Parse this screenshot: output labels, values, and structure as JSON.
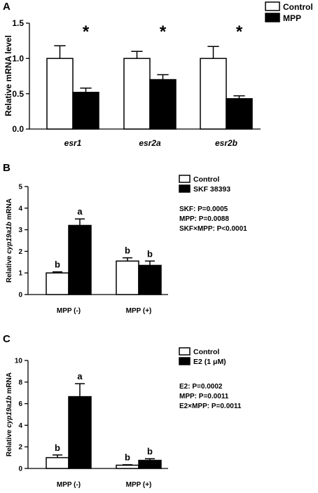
{
  "chart_data": [
    {
      "panel_label": "A",
      "type": "bar",
      "categories": [
        "esr1",
        "esr2a",
        "esr2b"
      ],
      "series": [
        {
          "name": "Control",
          "values": [
            1.0,
            1.0,
            1.0
          ],
          "errors": [
            0.18,
            0.1,
            0.17
          ]
        },
        {
          "name": "MPP",
          "values": [
            0.52,
            0.7,
            0.43
          ],
          "errors": [
            0.06,
            0.07,
            0.04
          ]
        }
      ],
      "significance": [
        "*",
        "*",
        "*"
      ],
      "ylabel": "Relative mRNA level",
      "ylim": [
        0,
        1.5
      ],
      "yticks": [
        "0.0",
        "0.5",
        "1.0",
        "1.5"
      ],
      "legend_position": "top-right"
    },
    {
      "panel_label": "B",
      "type": "bar",
      "categories": [
        "MPP (-)",
        "MPP (+)"
      ],
      "series": [
        {
          "name": "Control",
          "values": [
            1.0,
            1.55
          ],
          "errors": [
            0.05,
            0.15
          ]
        },
        {
          "name": "SKF 38393",
          "values": [
            3.2,
            1.35
          ],
          "errors": [
            0.3,
            0.2
          ]
        }
      ],
      "group_letters": [
        [
          "b",
          "a"
        ],
        [
          "b",
          "b"
        ]
      ],
      "ylabel_prefix": "Relative ",
      "ylabel_gene": "cyp19a1b",
      "ylabel_suffix": " mRNA",
      "ylim": [
        0,
        5
      ],
      "yticks": [
        "0",
        "1",
        "2",
        "3",
        "4",
        "5"
      ],
      "stats": [
        "SKF: P=0.0005",
        "MPP: P=0.0088",
        "SKF×MPP: P<0.0001"
      ],
      "legend_position": "right"
    },
    {
      "panel_label": "C",
      "type": "bar",
      "categories": [
        "MPP (-)",
        "MPP (+)"
      ],
      "series": [
        {
          "name": "Control",
          "values": [
            1.0,
            0.3
          ],
          "errors": [
            0.25,
            0.05
          ]
        },
        {
          "name": "E2 (1 μM)",
          "values": [
            6.65,
            0.75
          ],
          "errors": [
            1.2,
            0.15
          ]
        }
      ],
      "group_letters": [
        [
          "b",
          "a"
        ],
        [
          "b",
          "b"
        ]
      ],
      "ylabel_prefix": "Relative ",
      "ylabel_gene": "cyp19a1b",
      "ylabel_suffix": " mRNA",
      "ylim": [
        0,
        10
      ],
      "yticks": [
        "0",
        "2",
        "4",
        "6",
        "8",
        "10"
      ],
      "stats": [
        "E2: P=0.0002",
        "MPP: P=0.0011",
        "E2×MPP: P=0.0011"
      ],
      "legend_position": "right"
    }
  ]
}
